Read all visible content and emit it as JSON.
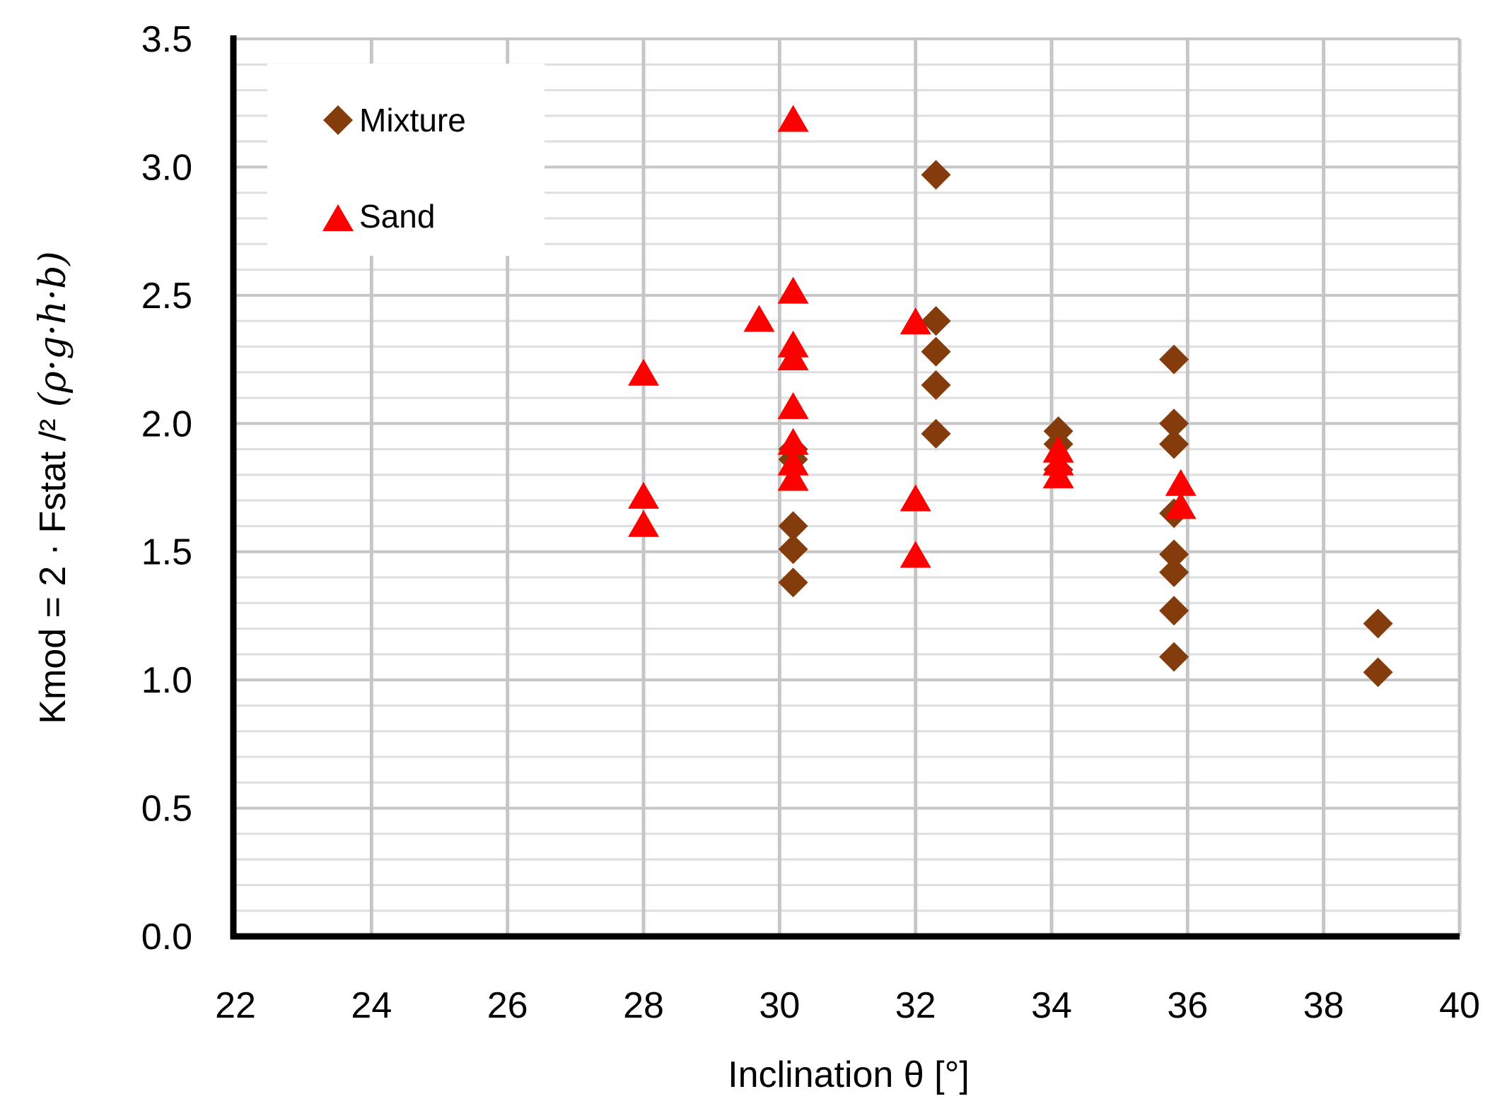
{
  "chart_data": {
    "type": "scatter",
    "title": "",
    "xlabel": "Inclination θ [°]",
    "ylabel_main": "Kmod = 2 · Fstat /²",
    "ylabel_units": " (ρ·g·h·b)",
    "xlim": [
      22,
      40
    ],
    "ylim": [
      0.0,
      3.5
    ],
    "x_ticks": [
      22,
      24,
      26,
      28,
      30,
      32,
      34,
      36,
      38,
      40
    ],
    "x_tick_labels": [
      "22",
      "24",
      "26",
      "28",
      "30",
      "32",
      "34",
      "36",
      "38",
      "40"
    ],
    "y_ticks": [
      0.0,
      0.5,
      1.0,
      1.5,
      2.0,
      2.5,
      3.0,
      3.5
    ],
    "y_tick_labels": [
      "0.0",
      "0.5",
      "1.0",
      "1.5",
      "2.0",
      "2.5",
      "3.0",
      "3.5"
    ],
    "y_minor_step": 0.1,
    "grid": true,
    "legend_position": "top-left",
    "series": [
      {
        "name": "Mixture",
        "marker": "diamond",
        "color": "#843C0C",
        "points": [
          [
            30.2,
            1.9
          ],
          [
            30.2,
            1.86
          ],
          [
            30.2,
            1.6
          ],
          [
            30.2,
            1.51
          ],
          [
            30.2,
            1.38
          ],
          [
            32.3,
            2.97
          ],
          [
            32.3,
            2.4
          ],
          [
            32.3,
            2.28
          ],
          [
            32.3,
            2.15
          ],
          [
            32.3,
            1.96
          ],
          [
            34.1,
            1.97
          ],
          [
            34.1,
            1.92
          ],
          [
            34.1,
            1.82
          ],
          [
            35.8,
            2.25
          ],
          [
            35.8,
            2.0
          ],
          [
            35.8,
            1.92
          ],
          [
            35.8,
            1.65
          ],
          [
            35.8,
            1.49
          ],
          [
            35.8,
            1.42
          ],
          [
            35.8,
            1.27
          ],
          [
            35.8,
            1.09
          ],
          [
            38.8,
            1.22
          ],
          [
            38.8,
            1.03
          ]
        ]
      },
      {
        "name": "Sand",
        "marker": "triangle",
        "color": "#FF0000",
        "points": [
          [
            28.0,
            2.2
          ],
          [
            28.0,
            1.72
          ],
          [
            28.0,
            1.61
          ],
          [
            29.7,
            2.41
          ],
          [
            30.2,
            3.19
          ],
          [
            30.2,
            2.52
          ],
          [
            30.2,
            2.31
          ],
          [
            30.2,
            2.26
          ],
          [
            30.2,
            2.07
          ],
          [
            30.2,
            1.93
          ],
          [
            30.2,
            1.85
          ],
          [
            30.2,
            1.79
          ],
          [
            32.0,
            2.4
          ],
          [
            32.0,
            1.71
          ],
          [
            32.0,
            1.49
          ],
          [
            34.1,
            1.9
          ],
          [
            34.1,
            1.85
          ],
          [
            34.1,
            1.8
          ],
          [
            35.9,
            1.77
          ],
          [
            35.9,
            1.68
          ]
        ]
      }
    ],
    "grid_colors": {
      "minor": "#DEDEDE",
      "major": "#C6C6C6",
      "axis": "#000000"
    },
    "background": "#FFFFFF"
  }
}
